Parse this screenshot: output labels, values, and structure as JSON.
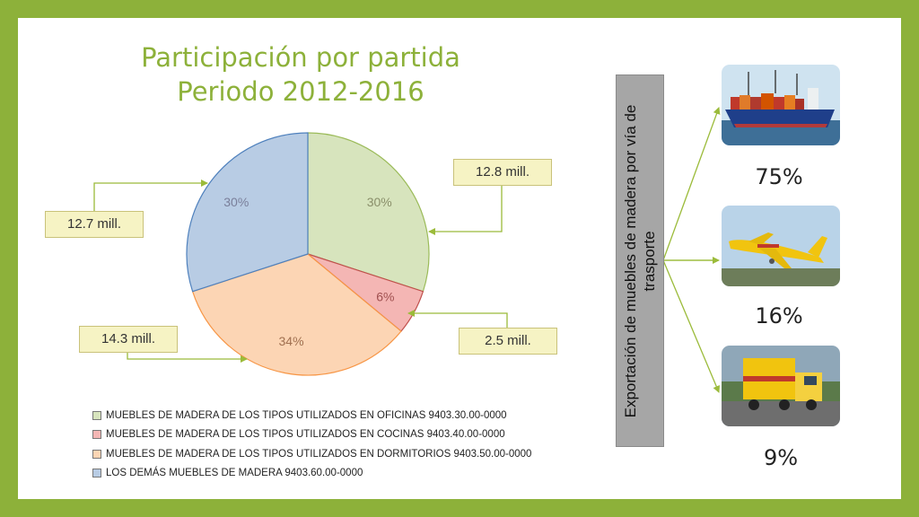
{
  "chart_data": {
    "type": "pie",
    "title": "Participación por partida",
    "subtitle": "Periodo 2012-2016",
    "slices": [
      {
        "label": "MUEBLES DE MADERA DE LOS TIPOS UTILIZADOS EN OFICINAS 9403.30.00-0000",
        "percent": 30,
        "value_label": "12.8 mill.",
        "color": "#d7e4bd"
      },
      {
        "label": "MUEBLES DE MADERA DE LOS TIPOS UTILIZADOS EN COCINAS 9403.40.00-0000",
        "percent": 6,
        "value_label": "2.5 mill.",
        "color": "#f4b6b4"
      },
      {
        "label": "MUEBLES DE MADERA DE LOS TIPOS UTILIZADOS EN DORMITORIOS 9403.50.00-0000",
        "percent": 34,
        "value_label": "14.3 mill.",
        "color": "#fcd5b4"
      },
      {
        "label": "LOS DEMÁS MUEBLES DE MADERA 9403.60.00-0000",
        "percent": 30,
        "value_label": "12.7 mill.",
        "color": "#b8cce4"
      }
    ],
    "legend_position": "bottom"
  },
  "transport": {
    "heading": "Exportación de muebles de madera por vía de trasporte",
    "modes": [
      {
        "icon": "cargo-ship-photo",
        "percent_label": "75%"
      },
      {
        "icon": "cargo-airplane-photo",
        "percent_label": "16%"
      },
      {
        "icon": "cargo-truck-photo",
        "percent_label": "9%"
      }
    ]
  },
  "colors": {
    "frame": "#8db13a",
    "title": "#8db13a",
    "callout_bg": "#f6f3c4",
    "arrow": "#9bbb3a"
  }
}
